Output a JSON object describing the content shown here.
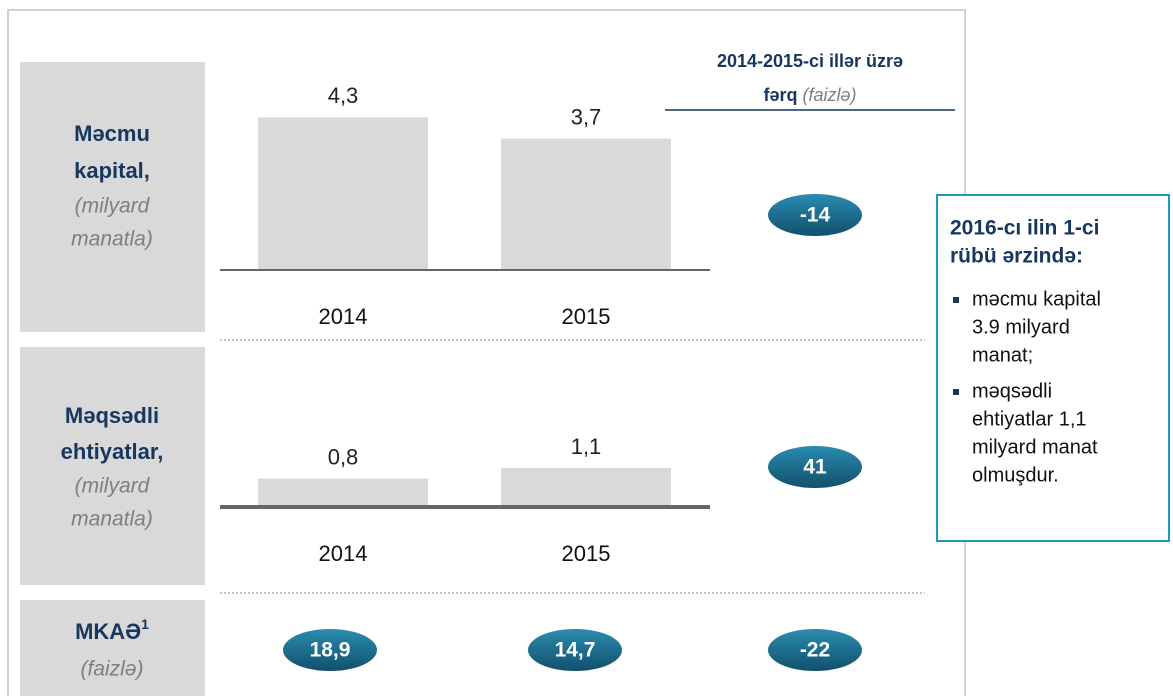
{
  "header": {
    "line1": "2014-2015-ci illər üzrə",
    "line2": "fərq",
    "line2_note": "(faizlə)"
  },
  "rows": [
    {
      "label": [
        "Məcmu",
        "kapital,"
      ],
      "unit": [
        "(milyard",
        "manatla)"
      ],
      "change": "-14"
    },
    {
      "label": [
        "Məqsədli",
        "ehtiyatlar,"
      ],
      "unit": [
        "(milyard",
        "manatla)"
      ],
      "change": "41"
    },
    {
      "label": [
        "MKAƏ"
      ],
      "sup": "1",
      "unit": [
        "(faizlə)"
      ],
      "values": [
        "18,9",
        "14,7"
      ],
      "change": "-22"
    }
  ],
  "chart_data": [
    {
      "type": "bar",
      "categories": [
        "2014",
        "2015"
      ],
      "values": [
        4.3,
        3.7
      ],
      "value_labels": [
        "4,3",
        "3,7"
      ],
      "color": "#d9d9d9"
    },
    {
      "type": "bar",
      "categories": [
        "2014",
        "2015"
      ],
      "values": [
        0.8,
        1.1
      ],
      "value_labels": [
        "0,8",
        "1,1"
      ],
      "color": "#d9d9d9"
    }
  ],
  "sidebar": {
    "title": [
      "2016-cı ilin 1-ci",
      "rübü ərzində:"
    ],
    "bullets": [
      [
        "məcmu kapital",
        "3.9 milyard",
        "manat;"
      ],
      [
        "məqsədli",
        "ehtiyatlar 1,1",
        "milyard manat",
        "olmuşdur."
      ]
    ]
  }
}
